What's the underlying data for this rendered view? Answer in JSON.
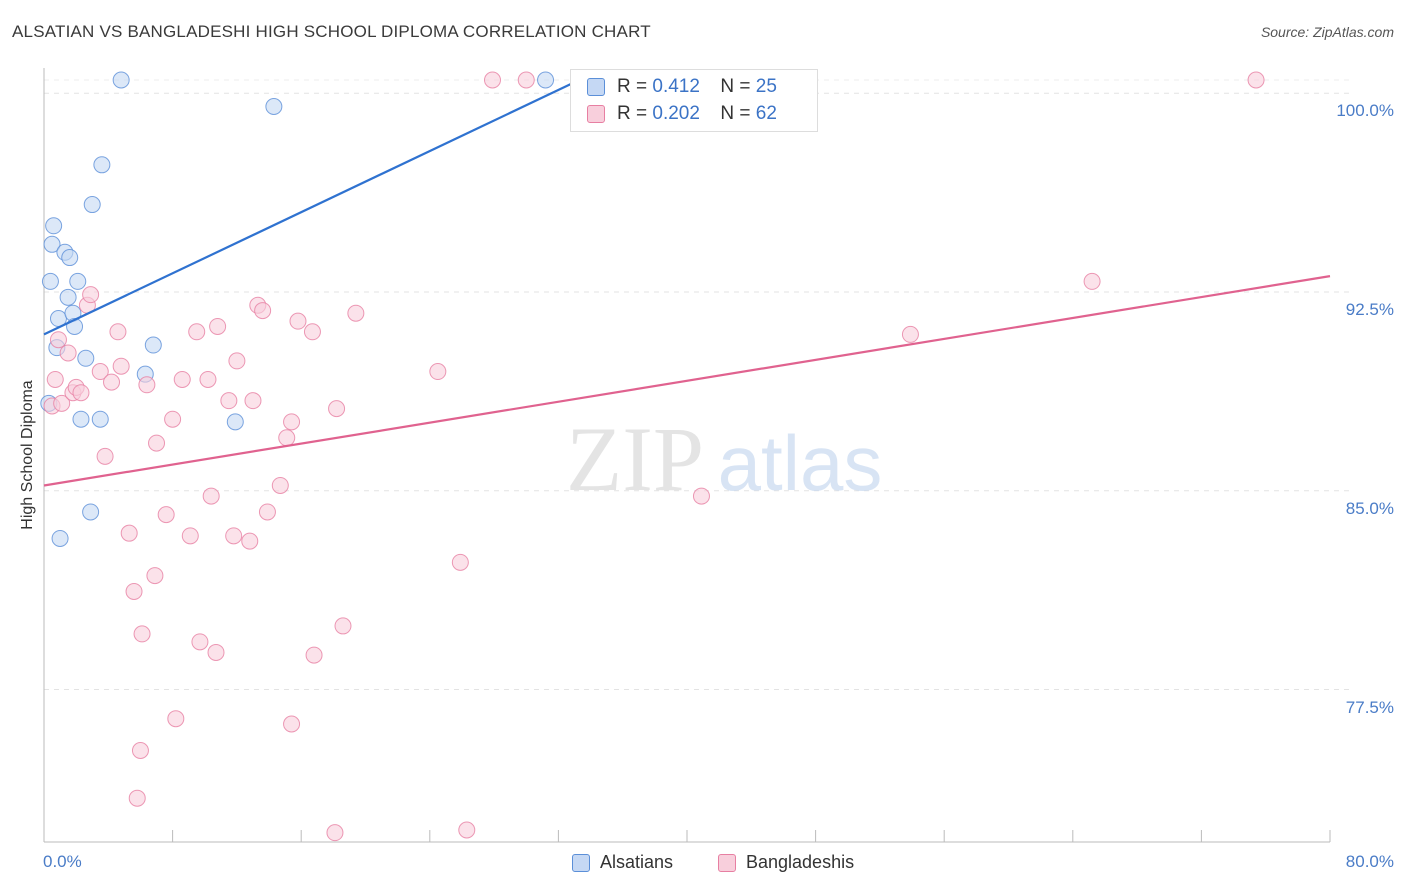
{
  "header": {
    "title": "ALSATIAN VS BANGLADESHI HIGH SCHOOL DIPLOMA CORRELATION CHART",
    "source": "Source: ZipAtlas.com"
  },
  "legend": {
    "rows": [
      {
        "r_label": "R = ",
        "r_value": "0.412",
        "n_label": "N = ",
        "n_value": "25"
      },
      {
        "r_label": "R = ",
        "r_value": "0.202",
        "n_label": "N = ",
        "n_value": "62"
      }
    ]
  },
  "watermark": {
    "zip": "ZIP",
    "atlas": "atlas"
  },
  "chart_data": {
    "type": "scatter",
    "title": "ALSATIAN VS BANGLADESHI HIGH SCHOOL DIPLOMA CORRELATION CHART",
    "xlabel": "",
    "ylabel": "High School Diploma",
    "xlim": [
      0,
      80
    ],
    "ylim": [
      71,
      100.5
    ],
    "x_tick_labels": [
      "0.0%",
      "80.0%"
    ],
    "y_ticks": [
      {
        "value": 100.0,
        "label": "100.0%"
      },
      {
        "value": 92.5,
        "label": "92.5%"
      },
      {
        "value": 85.0,
        "label": "85.0%"
      },
      {
        "value": 77.5,
        "label": "77.5%"
      }
    ],
    "colors": {
      "alsatians": "#5b8fd8",
      "bangladeshis": "#e77fa2"
    },
    "series": [
      {
        "name": "Alsatians",
        "points": [
          [
            0.3,
            88.3
          ],
          [
            0.4,
            92.9
          ],
          [
            0.5,
            94.3
          ],
          [
            0.6,
            95.0
          ],
          [
            0.8,
            90.4
          ],
          [
            0.9,
            91.5
          ],
          [
            1.0,
            83.2
          ],
          [
            1.3,
            94.0
          ],
          [
            1.5,
            92.3
          ],
          [
            1.6,
            93.8
          ],
          [
            1.8,
            91.7
          ],
          [
            1.9,
            91.2
          ],
          [
            2.1,
            92.9
          ],
          [
            2.3,
            87.7
          ],
          [
            2.6,
            90.0
          ],
          [
            2.9,
            84.2
          ],
          [
            3.0,
            95.8
          ],
          [
            3.5,
            87.7
          ],
          [
            3.6,
            97.3
          ],
          [
            4.8,
            100.5
          ],
          [
            6.3,
            89.4
          ],
          [
            6.8,
            90.5
          ],
          [
            11.9,
            87.6
          ],
          [
            14.3,
            99.5
          ],
          [
            31.2,
            100.5
          ]
        ],
        "trend": {
          "x": [
            0,
            33.3
          ],
          "y": [
            90.9,
            100.5
          ]
        }
      },
      {
        "name": "Bangladeshis",
        "points": [
          [
            0.5,
            88.2
          ],
          [
            0.7,
            89.2
          ],
          [
            0.9,
            90.7
          ],
          [
            1.1,
            88.3
          ],
          [
            1.5,
            90.2
          ],
          [
            1.8,
            88.7
          ],
          [
            2.0,
            88.9
          ],
          [
            2.3,
            88.7
          ],
          [
            2.7,
            92.0
          ],
          [
            2.9,
            92.4
          ],
          [
            3.5,
            89.5
          ],
          [
            3.8,
            86.3
          ],
          [
            4.2,
            89.1
          ],
          [
            4.6,
            91.0
          ],
          [
            4.8,
            89.7
          ],
          [
            5.3,
            83.4
          ],
          [
            5.6,
            81.2
          ],
          [
            5.8,
            73.4
          ],
          [
            6.0,
            75.2
          ],
          [
            6.1,
            79.6
          ],
          [
            6.4,
            89.0
          ],
          [
            6.9,
            81.8
          ],
          [
            7.0,
            86.8
          ],
          [
            7.6,
            84.1
          ],
          [
            8.0,
            87.7
          ],
          [
            8.2,
            76.4
          ],
          [
            8.6,
            89.2
          ],
          [
            9.1,
            83.3
          ],
          [
            9.5,
            91.0
          ],
          [
            9.7,
            79.3
          ],
          [
            10.2,
            89.2
          ],
          [
            10.4,
            84.8
          ],
          [
            10.7,
            78.9
          ],
          [
            10.8,
            91.2
          ],
          [
            11.5,
            88.4
          ],
          [
            11.8,
            83.3
          ],
          [
            12.0,
            89.9
          ],
          [
            12.8,
            83.1
          ],
          [
            13.0,
            88.4
          ],
          [
            13.3,
            92.0
          ],
          [
            13.6,
            91.8
          ],
          [
            13.9,
            84.2
          ],
          [
            14.7,
            85.2
          ],
          [
            15.1,
            87.0
          ],
          [
            15.4,
            87.6
          ],
          [
            15.4,
            76.2
          ],
          [
            15.8,
            91.4
          ],
          [
            16.7,
            91.0
          ],
          [
            16.8,
            78.8
          ],
          [
            18.2,
            88.1
          ],
          [
            18.1,
            72.1
          ],
          [
            18.6,
            79.9
          ],
          [
            19.4,
            91.7
          ],
          [
            24.5,
            89.5
          ],
          [
            25.9,
            82.3
          ],
          [
            26.3,
            72.2
          ],
          [
            27.9,
            100.5
          ],
          [
            30.0,
            100.5
          ],
          [
            40.9,
            84.8
          ],
          [
            53.9,
            90.9
          ],
          [
            65.2,
            92.9
          ],
          [
            75.4,
            100.5
          ]
        ],
        "trend": {
          "x": [
            0,
            80
          ],
          "y": [
            85.2,
            93.1
          ]
        }
      }
    ],
    "grid": true,
    "legend_position": "top-center"
  },
  "bottom_legend": {
    "items": [
      "Alsatians",
      "Bangladeshis"
    ]
  }
}
